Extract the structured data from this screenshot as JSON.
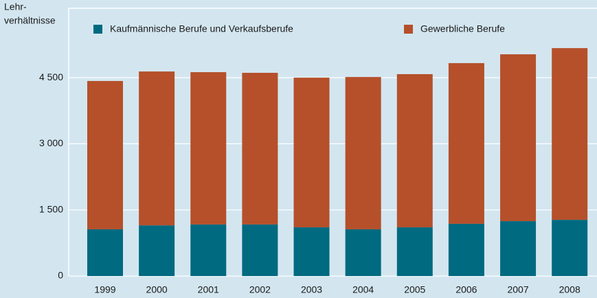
{
  "chart_data": {
    "type": "stacked_bar",
    "y_label": [
      "Lehr-",
      "verhältnisse"
    ],
    "categories": [
      "1999",
      "2000",
      "2001",
      "2002",
      "2003",
      "2004",
      "2005",
      "2006",
      "2007",
      "2008"
    ],
    "series": [
      {
        "name": "Kaufmännische Berufe und Verkaufsberufe",
        "color": "#006a80",
        "values": [
          1060,
          1150,
          1170,
          1170,
          1105,
          1060,
          1105,
          1185,
          1245,
          1275
        ]
      },
      {
        "name": "Gewerbliche Berufe",
        "color": "#b5502a",
        "values": [
          3365,
          3490,
          3455,
          3440,
          3395,
          3455,
          3475,
          3645,
          3785,
          3895
        ]
      }
    ],
    "ylim": [
      0,
      6075
    ],
    "yticks": [
      {
        "value": 0,
        "label": "0"
      },
      {
        "value": 1500,
        "label": "1 500"
      },
      {
        "value": 3000,
        "label": "3 000"
      },
      {
        "value": 4500,
        "label": "4 500"
      }
    ],
    "grid": true
  }
}
